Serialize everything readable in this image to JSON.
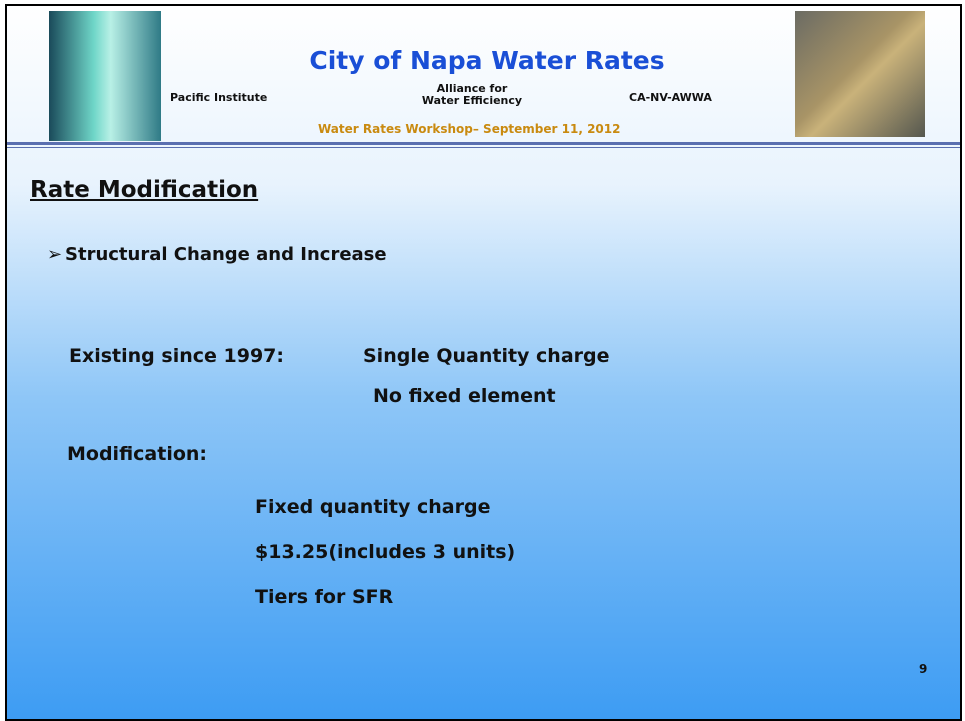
{
  "header": {
    "title": "City of Napa Water Rates",
    "org1": "Pacific Institute",
    "org2": "Alliance for Water Efficiency",
    "org3": "CA-NV-AWWA",
    "subtitle": "Water Rates Workshop– September 11, 2012"
  },
  "slide": {
    "heading": "Rate Modification",
    "bullet": "Structural Change and Increase",
    "existing_label": "Existing since 1997:",
    "existing_1": "Single Quantity charge",
    "existing_2": "No fixed element",
    "modification_label": "Modification:",
    "items": [
      "Fixed quantity charge",
      "$13.25(includes 3 units)",
      "Tiers for SFR"
    ],
    "page_number": "9"
  }
}
